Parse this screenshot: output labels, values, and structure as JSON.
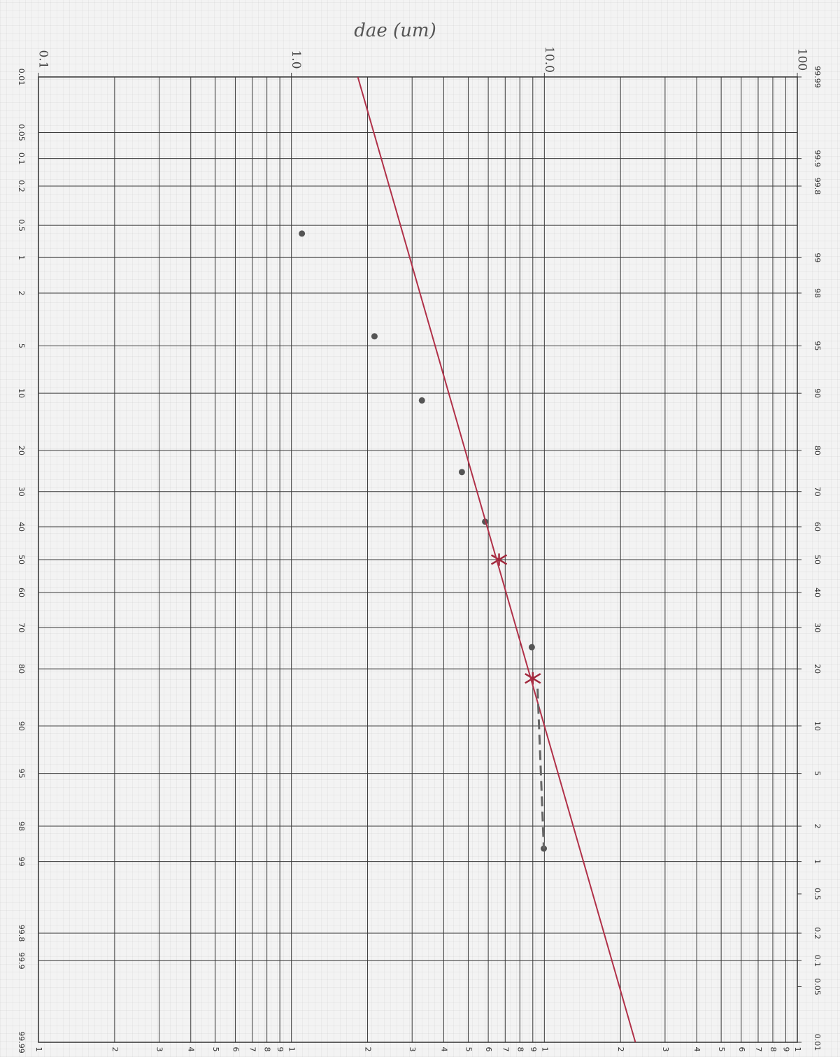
{
  "chart_data": {
    "type": "scatter",
    "title": "dae (um)",
    "xlog": true,
    "yscale": "probability",
    "grid": true,
    "xlim": [
      0.1,
      100
    ],
    "ylim": [
      0.01,
      99.99
    ],
    "y2lim": [
      99.99,
      0.01
    ],
    "xticks_top": [
      0.1,
      {
        "value": 1,
        "label": "1.0"
      },
      {
        "value": 10,
        "label": "10.0"
      },
      100
    ],
    "xticks": [
      {
        "value": 0.1,
        "label": "1"
      },
      {
        "value": 0.2,
        "label": "2"
      },
      {
        "value": 0.3,
        "label": "3"
      },
      {
        "value": 0.4,
        "label": "4"
      },
      {
        "value": 0.5,
        "label": "5"
      },
      {
        "value": 0.6,
        "label": "6"
      },
      {
        "value": 0.7,
        "label": "7"
      },
      {
        "value": 0.8,
        "label": "8"
      },
      {
        "value": 0.9,
        "label": "9"
      },
      1,
      2,
      3,
      4,
      5,
      6,
      7,
      8,
      9,
      {
        "value": 10,
        "label": "1"
      },
      {
        "value": 20,
        "label": "2"
      },
      {
        "value": 30,
        "label": "3"
      },
      {
        "value": 40,
        "label": "4"
      },
      {
        "value": 50,
        "label": "5"
      },
      {
        "value": 60,
        "label": "6"
      },
      {
        "value": 70,
        "label": "7"
      },
      {
        "value": 80,
        "label": "8"
      },
      {
        "value": 90,
        "label": "9"
      },
      {
        "value": 100,
        "label": "1"
      }
    ],
    "yticks": [
      0.01,
      0.05,
      0.1,
      0.2,
      0.5,
      1,
      2,
      5,
      10,
      20,
      30,
      40,
      50,
      60,
      70,
      80,
      90,
      95,
      98,
      99,
      99.8,
      99.9,
      99.99
    ],
    "y2ticks": [
      99.99,
      99.9,
      99.8,
      99,
      98,
      95,
      90,
      80,
      70,
      60,
      50,
      40,
      30,
      20,
      10,
      5,
      2,
      1,
      0.5,
      0.2,
      0.1,
      0.05,
      0.01
    ],
    "series": [
      {
        "marker": "dot",
        "color": "#555555",
        "x": [
          1.1,
          2.13,
          3.28,
          4.72,
          5.83,
          8.92,
          9.95
        ],
        "values": [
          0.6,
          4.3,
          11,
          25,
          38.5,
          75,
          98.7
        ]
      },
      {
        "marker": "cross",
        "color": "#a0283c",
        "x": [
          6.62,
          9.0
        ],
        "values": [
          50,
          82
        ]
      },
      {
        "marker": "line",
        "color": "#b03048",
        "x": [
          1.83,
          22.9
        ],
        "values": [
          0.01,
          99.99
        ]
      },
      {
        "marker": "dashed",
        "color": "#666666",
        "x": [
          9.4,
          9.95
        ],
        "values": [
          84,
          98.7
        ]
      }
    ]
  }
}
